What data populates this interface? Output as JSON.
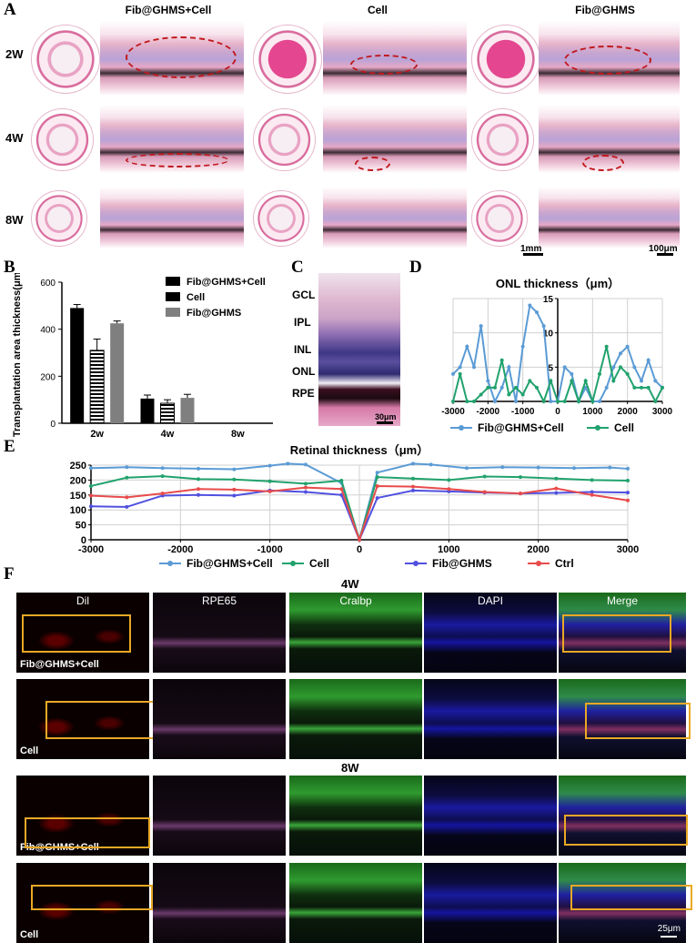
{
  "panel_labels": {
    "a": "A",
    "b": "B",
    "c": "C",
    "d": "D",
    "e": "E",
    "f": "F"
  },
  "panel_a": {
    "columns": [
      "Fib@GHMS+Cell",
      "Cell",
      "Fib@GHMS"
    ],
    "rows": [
      "2W",
      "4W",
      "8W"
    ],
    "scale_left": "1mm",
    "scale_right": "100μm"
  },
  "panel_c": {
    "layers": [
      "GCL",
      "IPL",
      "INL",
      "ONL",
      "RPE"
    ],
    "scale": "30μm"
  },
  "panel_f": {
    "stains": [
      "Dil",
      "RPE65",
      "Cralbp",
      "DAPI",
      "Merge"
    ],
    "time_labels": [
      "4W",
      "8W"
    ],
    "row_labels": [
      "Fib@GHMS+Cell",
      "Cell",
      "Fib@GHMS+Cell",
      "Cell"
    ],
    "scale": "25μm"
  },
  "chart_data": [
    {
      "id": "B",
      "type": "bar",
      "ylabel": "Transplantation area thickness(μm)",
      "categories": [
        "2w",
        "4w",
        "8w"
      ],
      "ylim": [
        0,
        600
      ],
      "yticks": [
        0,
        200,
        400,
        600
      ],
      "series": [
        {
          "name": "Fib@GHMS+Cell",
          "color": "#000000",
          "values": [
            490,
            105,
            0
          ],
          "errors": [
            15,
            15,
            0
          ]
        },
        {
          "name": "Cell",
          "color": "#000000",
          "pattern": "hstripes",
          "values": [
            310,
            85,
            0
          ],
          "errors": [
            48,
            15,
            0
          ]
        },
        {
          "name": "Fib@GHMS",
          "color": "#7f7f7f",
          "values": [
            425,
            108,
            0
          ],
          "errors": [
            10,
            15,
            0
          ]
        }
      ],
      "legend": "top-right"
    },
    {
      "id": "D",
      "type": "line",
      "title": "ONL thickness（μm）",
      "xlim": [
        -3000,
        3000
      ],
      "ylim": [
        0,
        15
      ],
      "xticks": [
        -3000,
        -2000,
        -1000,
        0,
        1000,
        2000,
        3000
      ],
      "yticks": [
        5,
        10,
        15
      ],
      "series": [
        {
          "name": "Fib@GHMS+Cell",
          "color": "#5b9bd5",
          "x": [
            -3000,
            -2800,
            -2600,
            -2400,
            -2200,
            -2000,
            -1800,
            -1600,
            -1400,
            -1200,
            -1000,
            -800,
            -600,
            -400,
            -200,
            0,
            200,
            400,
            600,
            800,
            1000,
            1200,
            1400,
            1600,
            1800,
            2000,
            2200,
            2400,
            2600,
            2800,
            3000
          ],
          "y": [
            4,
            5,
            8,
            5,
            11,
            3,
            0,
            2,
            5,
            0,
            8,
            14,
            13,
            11,
            0,
            0,
            5,
            4,
            0,
            2,
            0,
            0,
            2,
            5,
            7,
            8,
            5,
            3,
            6,
            3,
            2
          ]
        },
        {
          "name": "Cell",
          "color": "#21a26d",
          "x": [
            -3000,
            -2800,
            -2600,
            -2400,
            -2200,
            -2000,
            -1800,
            -1600,
            -1400,
            -1200,
            -1000,
            -800,
            -600,
            -400,
            -200,
            0,
            200,
            400,
            600,
            800,
            1000,
            1200,
            1400,
            1600,
            1800,
            2000,
            2200,
            2400,
            2600,
            2800,
            3000
          ],
          "y": [
            0,
            4,
            0,
            0,
            1,
            2,
            2,
            6,
            1,
            2,
            1,
            3,
            2,
            0,
            3,
            0,
            0,
            3,
            0,
            3,
            0,
            4,
            8,
            3,
            5,
            4,
            2,
            2,
            2,
            0,
            2
          ]
        }
      ],
      "legend": "bottom"
    },
    {
      "id": "E",
      "type": "line",
      "title": "Retinal thickness（μm）",
      "xlim": [
        -3000,
        3000
      ],
      "ylim": [
        0,
        250
      ],
      "xticks": [
        -3000,
        -2000,
        -1000,
        0,
        1000,
        2000,
        3000
      ],
      "yticks": [
        0,
        50,
        100,
        150,
        200,
        250
      ],
      "series": [
        {
          "name": "Fib@GHMS+Cell",
          "color": "#5b9bd5",
          "x": [
            -3000,
            -2600,
            -2200,
            -1800,
            -1400,
            -1000,
            -800,
            -600,
            -200,
            0,
            200,
            600,
            800,
            1200,
            1600,
            2000,
            2400,
            2800,
            3000
          ],
          "y": [
            240,
            243,
            240,
            238,
            236,
            248,
            255,
            252,
            190,
            0,
            225,
            255,
            252,
            240,
            243,
            242,
            240,
            242,
            238
          ]
        },
        {
          "name": "Cell",
          "color": "#21a26d",
          "x": [
            -3000,
            -2600,
            -2200,
            -1800,
            -1400,
            -1000,
            -600,
            -200,
            0,
            200,
            600,
            1000,
            1400,
            1800,
            2200,
            2600,
            3000
          ],
          "y": [
            180,
            208,
            213,
            203,
            202,
            196,
            188,
            198,
            0,
            210,
            205,
            200,
            212,
            210,
            205,
            200,
            198
          ]
        },
        {
          "name": "Fib@GHMS",
          "color": "#5050e0",
          "x": [
            -3000,
            -2600,
            -2200,
            -1800,
            -1400,
            -1000,
            -600,
            -200,
            0,
            200,
            600,
            1000,
            1400,
            1800,
            2200,
            2600,
            3000
          ],
          "y": [
            112,
            110,
            148,
            150,
            148,
            165,
            160,
            150,
            0,
            140,
            165,
            162,
            158,
            155,
            157,
            160,
            158
          ]
        },
        {
          "name": "Ctrl",
          "color": "#e84b4b",
          "x": [
            -3000,
            -2600,
            -2200,
            -1800,
            -1400,
            -1000,
            -600,
            -200,
            0,
            200,
            600,
            1000,
            1400,
            1800,
            2200,
            2600,
            3000
          ],
          "y": [
            148,
            142,
            155,
            170,
            168,
            162,
            175,
            170,
            0,
            180,
            178,
            170,
            160,
            155,
            172,
            150,
            132
          ]
        }
      ],
      "legend": "bottom"
    }
  ]
}
